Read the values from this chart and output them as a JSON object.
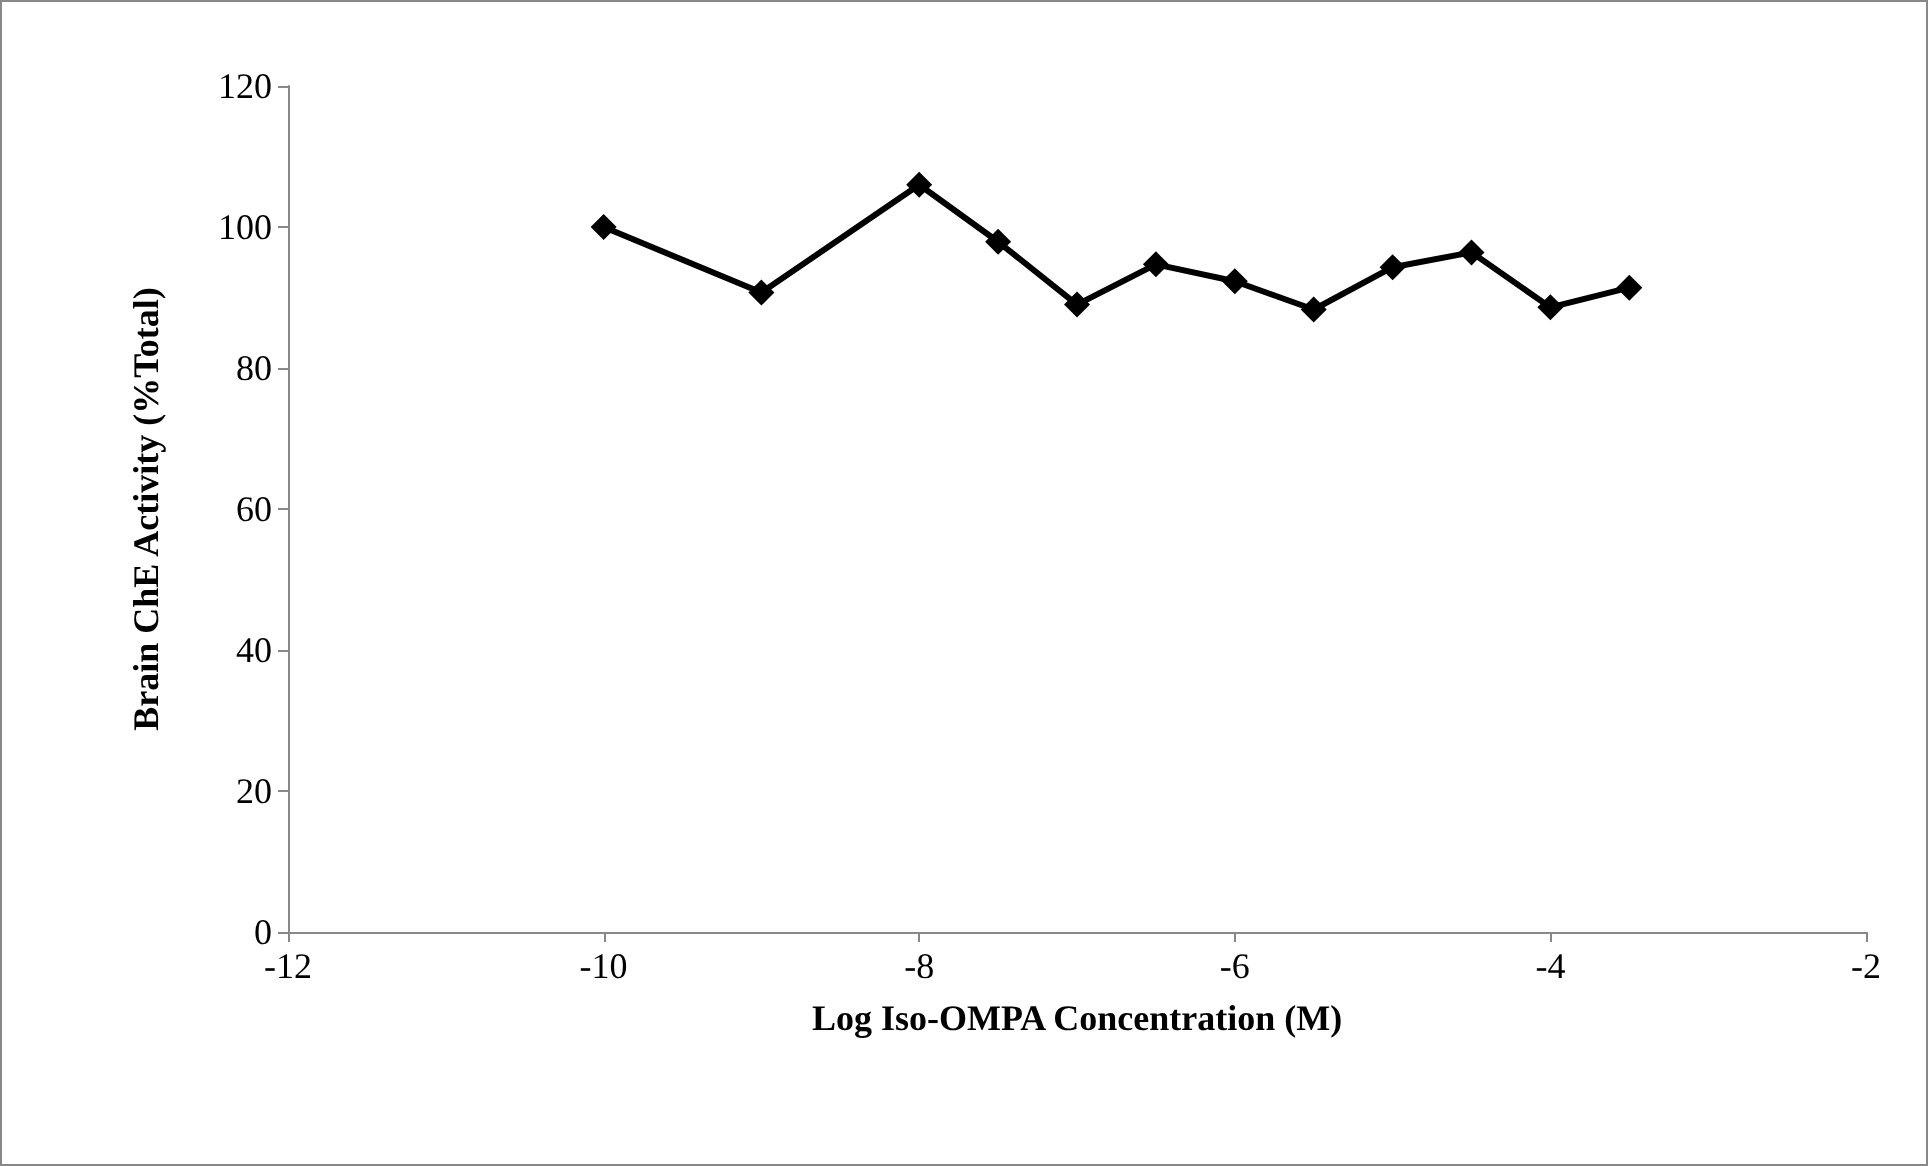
{
  "chart_data": {
    "type": "line",
    "xlabel": "Log Iso-OMPA Concentration (M)",
    "ylabel": "Brain ChE Activity (%Total)",
    "x": [
      -10,
      -9,
      -8,
      -7.5,
      -7,
      -6.5,
      -6,
      -5.5,
      -5,
      -4.5,
      -4,
      -3.5
    ],
    "series": [
      {
        "color": "#000000",
        "values": [
          100,
          90.7,
          106,
          97.9,
          89,
          94.7,
          92.3,
          88.3,
          94.3,
          96.4,
          88.6,
          91.4
        ]
      }
    ],
    "xlim": [
      -12,
      -2
    ],
    "xticks": [
      -12,
      -10,
      -8,
      -6,
      -4,
      -2
    ],
    "ylim": [
      0,
      120
    ],
    "yticks": [
      0,
      20,
      40,
      60,
      80,
      100,
      120
    ],
    "grid": false,
    "marker": "diamond",
    "line_style": "solid"
  }
}
